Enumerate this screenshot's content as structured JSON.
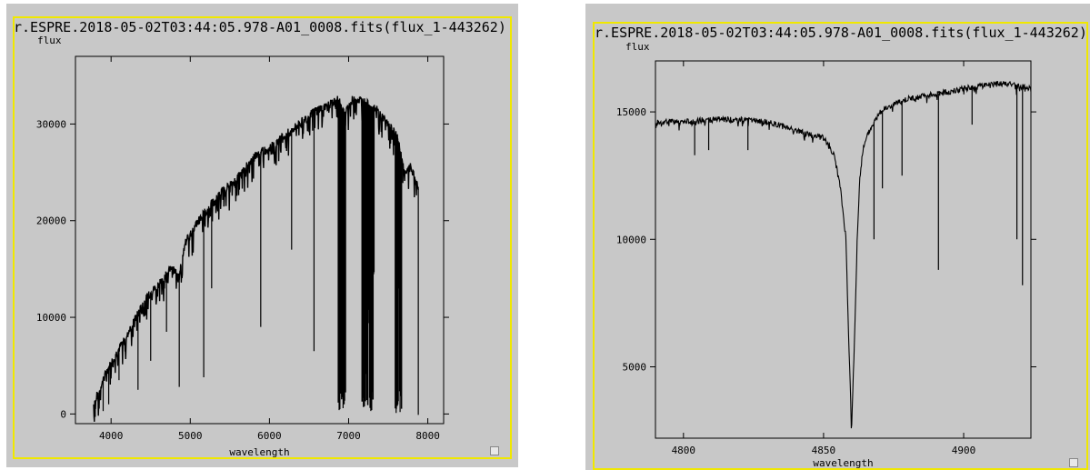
{
  "panels": [
    {
      "title": "r.ESPRE.2018-05-02T03:44:05.978-A01_0008.fits(flux_1-443262)",
      "ylabel": "flux",
      "xlabel": "wavelength"
    },
    {
      "title": "r.ESPRE.2018-05-02T03:44:05.978-A01_0008.fits(flux_1-443262)",
      "ylabel": "flux",
      "xlabel": "wavelength"
    }
  ],
  "chart_data": [
    {
      "type": "line",
      "title": "r.ESPRE.2018-05-02T03:44:05.978-A01_0008.fits(flux_1-443262)",
      "xlabel": "wavelength",
      "ylabel": "flux",
      "xlim": [
        3550,
        8200
      ],
      "ylim": [
        -1000,
        37000
      ],
      "xticks": [
        4000,
        5000,
        6000,
        7000,
        8000
      ],
      "yticks": [
        0,
        10000,
        20000,
        30000
      ],
      "grid": false,
      "x": [
        3780,
        3850,
        3950,
        4050,
        4150,
        4250,
        4350,
        4450,
        4550,
        4650,
        4750,
        4860,
        4950,
        5100,
        5250,
        5400,
        5550,
        5700,
        5850,
        6000,
        6150,
        6300,
        6450,
        6600,
        6750,
        6870,
        6950,
        7050,
        7150,
        7250,
        7350,
        7450,
        7550,
        7620,
        7700,
        7780,
        7880
      ],
      "values": [
        1000,
        2500,
        4500,
        6000,
        7500,
        9000,
        10500,
        12000,
        13000,
        14000,
        15000,
        14500,
        18000,
        20000,
        21500,
        23000,
        24000,
        25500,
        27000,
        27500,
        28500,
        29500,
        30500,
        31500,
        32000,
        32500,
        31000,
        32500,
        32500,
        32000,
        31500,
        30500,
        29500,
        28500,
        25000,
        25500,
        23500
      ],
      "absorption_lines": [
        {
          "x": 3800,
          "depth_to": -300
        },
        {
          "x": 3900,
          "depth_to": 300
        },
        {
          "x": 3970,
          "depth_to": 1000
        },
        {
          "x": 4100,
          "depth_to": 3500
        },
        {
          "x": 4340,
          "depth_to": 2500
        },
        {
          "x": 4500,
          "depth_to": 5500
        },
        {
          "x": 4700,
          "depth_to": 8500
        },
        {
          "x": 4861,
          "depth_to": 2800
        },
        {
          "x": 5170,
          "depth_to": 3800
        },
        {
          "x": 5270,
          "depth_to": 13000
        },
        {
          "x": 5890,
          "depth_to": 9000
        },
        {
          "x": 6280,
          "depth_to": 17000
        },
        {
          "x": 6563,
          "depth_to": 6500
        },
        {
          "x": 6880,
          "depth_to": 400
        },
        {
          "x": 6930,
          "depth_to": 600
        },
        {
          "x": 7200,
          "depth_to": 800
        },
        {
          "x": 7280,
          "depth_to": 300
        },
        {
          "x": 7600,
          "depth_to": 100
        },
        {
          "x": 7650,
          "depth_to": 200
        },
        {
          "x": 7880,
          "depth_to": -100
        }
      ]
    },
    {
      "type": "line",
      "title": "r.ESPRE.2018-05-02T03:44:05.978-A01_0008.fits(flux_1-443262)",
      "xlabel": "wavelength",
      "ylabel": "flux",
      "xlim": [
        4790,
        4924
      ],
      "ylim": [
        2200,
        17000
      ],
      "xticks": [
        4800,
        4850,
        4900
      ],
      "yticks": [
        5000,
        10000,
        15000
      ],
      "grid": false,
      "x": [
        4790,
        4800,
        4810,
        4820,
        4830,
        4840,
        4845,
        4850,
        4852,
        4854,
        4856,
        4858,
        4859,
        4860,
        4861,
        4862,
        4863,
        4864,
        4866,
        4868,
        4870,
        4875,
        4880,
        4885,
        4890,
        4895,
        4900,
        4905,
        4910,
        4915,
        4920,
        4924
      ],
      "values": [
        14600,
        14600,
        14700,
        14700,
        14600,
        14300,
        14100,
        14000,
        13700,
        13200,
        12000,
        10000,
        6000,
        2500,
        6000,
        10000,
        12500,
        13500,
        14200,
        14600,
        15000,
        15300,
        15500,
        15600,
        15700,
        15800,
        15900,
        16000,
        16100,
        16100,
        16000,
        15900
      ],
      "absorption_lines": [
        {
          "x": 4804,
          "depth_to": 13300
        },
        {
          "x": 4809,
          "depth_to": 13500
        },
        {
          "x": 4823,
          "depth_to": 13500
        },
        {
          "x": 4868,
          "depth_to": 10000
        },
        {
          "x": 4871,
          "depth_to": 12000
        },
        {
          "x": 4878,
          "depth_to": 12500
        },
        {
          "x": 4891,
          "depth_to": 8800
        },
        {
          "x": 4903,
          "depth_to": 14500
        },
        {
          "x": 4919,
          "depth_to": 10000
        },
        {
          "x": 4921,
          "depth_to": 8200
        }
      ]
    }
  ]
}
